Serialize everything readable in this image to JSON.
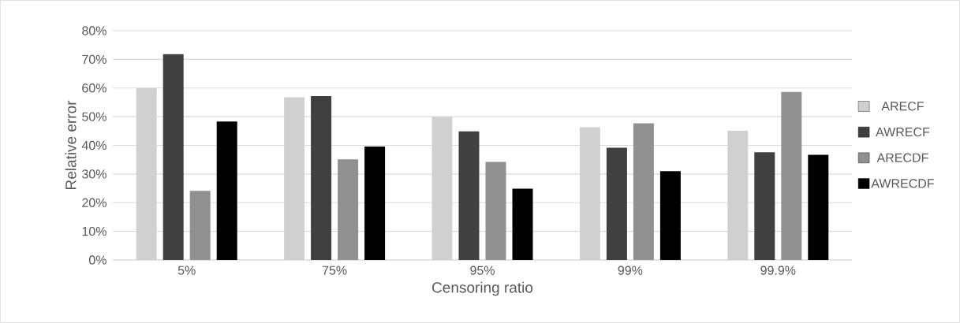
{
  "chart_data": {
    "type": "bar",
    "xlabel": "Censoring ratio",
    "ylabel": "Relative error",
    "categories": [
      "5%",
      "75%",
      "95%",
      "99%",
      "99.9%"
    ],
    "series": [
      {
        "name": "ARECF",
        "color": "#d0d0d0",
        "values": [
          60.0,
          56.8,
          49.9,
          46.3,
          45.1
        ]
      },
      {
        "name": "AWRECF",
        "color": "#404040",
        "values": [
          71.8,
          57.2,
          44.9,
          39.2,
          37.6
        ]
      },
      {
        "name": "ARECDF",
        "color": "#909090",
        "values": [
          24.1,
          35.1,
          34.2,
          47.7,
          58.6
        ]
      },
      {
        "name": "AWRECDF",
        "color": "#000000",
        "values": [
          48.3,
          39.6,
          24.9,
          31.0,
          36.7
        ]
      }
    ],
    "ylim": [
      0,
      80
    ],
    "yticks": [
      {
        "value": 0,
        "label": "0%"
      },
      {
        "value": 10,
        "label": "10%"
      },
      {
        "value": 20,
        "label": "20%"
      },
      {
        "value": 30,
        "label": "30%"
      },
      {
        "value": 40,
        "label": "40%"
      },
      {
        "value": 50,
        "label": "50%"
      },
      {
        "value": 60,
        "label": "60%"
      },
      {
        "value": 70,
        "label": "70%"
      },
      {
        "value": 80,
        "label": "80%"
      }
    ],
    "grid": "y",
    "legend": "right"
  }
}
